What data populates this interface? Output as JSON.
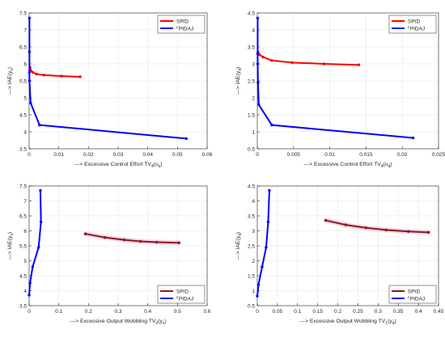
{
  "chart_data": [
    {
      "type": "line",
      "xlabel": "---> Excessive Control Effort  TV",
      "xlabel_sub": "4",
      "xlabel_tail": "(u",
      "xlabel_tail_sub": "s",
      "xlabel_end": ")",
      "ylabel": "---> IAE(y",
      "ylabel_sub": "s",
      "ylabel_end": ")",
      "xlim": [
        0,
        0.06
      ],
      "ylim": [
        3.5,
        7.5
      ],
      "xticks": [
        0,
        0.01,
        0.02,
        0.03,
        0.04,
        0.05,
        0.06
      ],
      "xtick_labels": [
        "0",
        "0.01",
        "0.02",
        "0.03",
        "0.04",
        "0.05",
        "0.06"
      ],
      "yticks": [
        3.5,
        4,
        4.5,
        5,
        5.5,
        6,
        6.5,
        7,
        7.5
      ],
      "ytick_labels": [
        "3.5",
        "4",
        "4.5",
        "5",
        "5.5",
        "6",
        "6.5",
        "7",
        "7.5"
      ],
      "legend_position": "top-right",
      "series": [
        {
          "name": "SPID",
          "color": "#ff0000",
          "x": [
            0.0003,
            0.0006,
            0.0012,
            0.0025,
            0.005,
            0.011,
            0.0172
          ],
          "y": [
            5.9,
            5.8,
            5.75,
            5.7,
            5.67,
            5.64,
            5.62
          ]
        },
        {
          "name": "FPIDAJ",
          "name_prefix_sup": "F",
          "name_main": "PIDAJ",
          "color": "#0000ff",
          "x": [
            0.0001,
            0.0001,
            0.0001,
            0.0001,
            0.0005,
            0.0035,
            0.053
          ],
          "y": [
            7.35,
            6.35,
            5.75,
            5.5,
            4.85,
            4.2,
            3.8
          ]
        }
      ]
    },
    {
      "type": "line",
      "xlabel": "---> Excessive Control Effort  TV",
      "xlabel_sub": "4",
      "xlabel_tail": "(u",
      "xlabel_tail_sub": "d",
      "xlabel_end": ")",
      "ylabel": "---> IAE(y",
      "ylabel_sub": "d",
      "ylabel_end": ")",
      "xlim": [
        0,
        0.025
      ],
      "ylim": [
        0.5,
        4.5
      ],
      "xticks": [
        0,
        0.005,
        0.01,
        0.015,
        0.02,
        0.025
      ],
      "xtick_labels": [
        "0",
        "0.005",
        "0.01",
        "0.015",
        "0.02",
        "0.025"
      ],
      "yticks": [
        0.5,
        1,
        1.5,
        2,
        2.5,
        3,
        3.5,
        4,
        4.5
      ],
      "ytick_labels": [
        "0.5",
        "1",
        "1.5",
        "2",
        "2.5",
        "3",
        "3.5",
        "4",
        "4.5"
      ],
      "legend_position": "top-right",
      "series": [
        {
          "name": "SPID",
          "color": "#ff0000",
          "x": [
            0.0001,
            0.0003,
            0.0008,
            0.002,
            0.0048,
            0.0092,
            0.014
          ],
          "y": [
            3.35,
            3.27,
            3.2,
            3.1,
            3.04,
            3.0,
            2.97
          ]
        },
        {
          "name": "FPIDAJ",
          "name_prefix_sup": "F",
          "name_main": "PIDAJ",
          "color": "#0000ff",
          "x": [
            5e-05,
            5e-05,
            5e-05,
            0.0001,
            0.0002,
            0.002,
            0.0215
          ],
          "y": [
            4.35,
            3.3,
            3.0,
            2.45,
            1.8,
            1.2,
            0.82
          ]
        }
      ]
    },
    {
      "type": "line",
      "xlabel": "---> Excessive Output Wobbling TV",
      "xlabel_sub": "0",
      "xlabel_tail": "(y",
      "xlabel_tail_sub": "s",
      "xlabel_end": ")",
      "ylabel": "---> IAE(y",
      "ylabel_sub": "s",
      "ylabel_end": ")",
      "xlim": [
        0,
        0.6
      ],
      "ylim": [
        3.5,
        7.5
      ],
      "xticks": [
        0,
        0.1,
        0.2,
        0.3,
        0.4,
        0.5,
        0.6
      ],
      "xtick_labels": [
        "0",
        "0.1",
        "0.2",
        "0.3",
        "0.4",
        "0.5",
        "0.6"
      ],
      "yticks": [
        3.5,
        4,
        4.5,
        5,
        5.5,
        6,
        6.5,
        7,
        7.5
      ],
      "ytick_labels": [
        "3.5",
        "4",
        "4.5",
        "5",
        "5.5",
        "6",
        "6.5",
        "7",
        "7.5"
      ],
      "legend_position": "bottom-right",
      "series": [
        {
          "name": "SPID",
          "color": "#8b1a1a",
          "x": [
            0.19,
            0.255,
            0.32,
            0.375,
            0.43,
            0.505
          ],
          "y": [
            5.9,
            5.78,
            5.7,
            5.65,
            5.62,
            5.6
          ]
        },
        {
          "name": "FPIDAJ",
          "name_prefix_sup": "F",
          "name_main": "PIDAJ",
          "color": "#0000ff",
          "x": [
            0.0,
            0.003,
            0.012,
            0.032,
            0.04,
            0.038
          ],
          "y": [
            3.85,
            4.25,
            4.8,
            5.45,
            6.3,
            7.35
          ]
        }
      ]
    },
    {
      "type": "line",
      "xlabel": "---> Excessive Output Wobbling TV",
      "xlabel_sub": "1",
      "xlabel_tail": "(y",
      "xlabel_tail_sub": "d",
      "xlabel_end": ")",
      "ylabel": "---> IAE(y",
      "ylabel_sub": "d",
      "ylabel_end": ")",
      "xlim": [
        0,
        0.45
      ],
      "ylim": [
        0.5,
        4.5
      ],
      "xticks": [
        0,
        0.05,
        0.1,
        0.15,
        0.2,
        0.25,
        0.3,
        0.35,
        0.4,
        0.45
      ],
      "xtick_labels": [
        "0",
        "0.05",
        "0.1",
        "0.15",
        "0.2",
        "0.25",
        "0.3",
        "0.35",
        "0.4",
        "0.45"
      ],
      "yticks": [
        0.5,
        1,
        1.5,
        2,
        2.5,
        3,
        3.5,
        4,
        4.5
      ],
      "ytick_labels": [
        "0.5",
        "1",
        "1.5",
        "2",
        "2.5",
        "3",
        "3.5",
        "4",
        "4.5"
      ],
      "legend_position": "bottom-right",
      "series": [
        {
          "name": "SPID",
          "color": "#8b1a1a",
          "x": [
            0.17,
            0.22,
            0.27,
            0.32,
            0.375,
            0.425
          ],
          "y": [
            3.35,
            3.2,
            3.1,
            3.03,
            2.98,
            2.95
          ]
        },
        {
          "name": "FPIDAJ",
          "name_prefix_sup": "F",
          "name_main": "PIDAJ",
          "color": "#0000ff",
          "x": [
            0.0,
            0.003,
            0.012,
            0.022,
            0.027,
            0.03
          ],
          "y": [
            0.82,
            1.2,
            1.8,
            2.45,
            3.3,
            4.35
          ]
        }
      ]
    }
  ]
}
